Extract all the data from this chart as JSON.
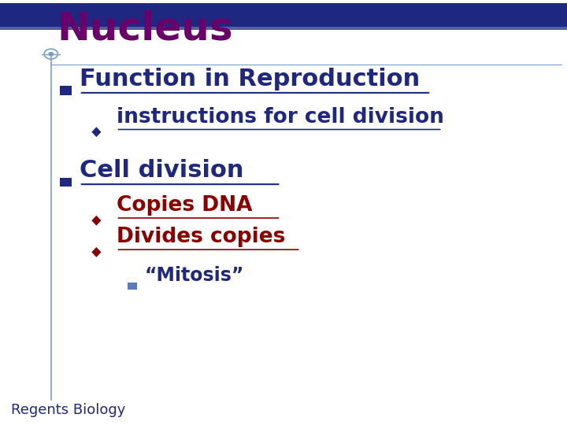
{
  "title": "Nucleus",
  "title_color": "#6B006B",
  "header_bar_color": "#1F2880",
  "header_bar_height": 0.055,
  "background_color": "#FFFFFF",
  "left_line_color": "#7B9EC8",
  "bullet1_text": "Function in Reproduction",
  "bullet1_color": "#1F2880",
  "sub_bullet1_text": "instructions for cell division",
  "sub_bullet1_color": "#1F2880",
  "bullet2_text": "Cell division",
  "bullet2_color": "#1F2880",
  "sub_bullet2a_text": "Copies DNA",
  "sub_bullet2a_color": "#8B0000",
  "sub_bullet2b_text": "Divides copies",
  "sub_bullet2b_color": "#8B0000",
  "sub_sub_bullet_text": "“Mitosis”",
  "sub_sub_bullet_color": "#1F2880",
  "footer_text": "Regents Biology",
  "footer_color": "#1F2880",
  "square_bullet_color": "#1F2880",
  "diamond_bullet_color": "#1F2880",
  "diamond_bullet_color_red": "#8B0000",
  "small_square_color": "#5B7DB8",
  "thin_bar_color": "#5560A0"
}
